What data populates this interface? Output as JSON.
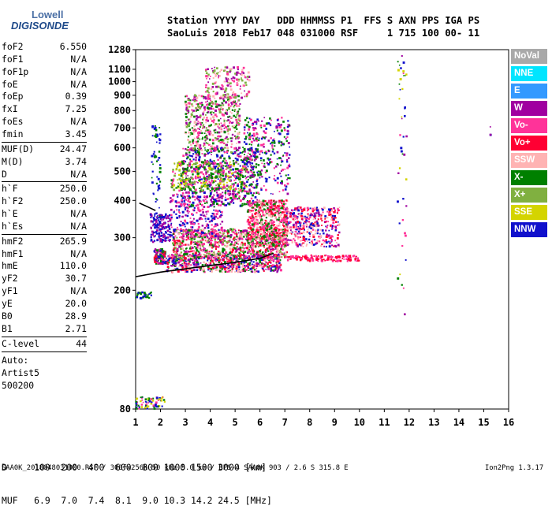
{
  "logo": {
    "top": "Lowell",
    "bottom": "DIGISONDE"
  },
  "header": {
    "row1": "Station YYYY DAY   DDD HHMMSS P1  FFS S AXN PPS IGA PS",
    "row2": "SaoLuis 2018 Feb17 048 031000 RSF     1 715 100 00- 11"
  },
  "params": [
    {
      "name": "foF2",
      "value": "6.550"
    },
    {
      "name": "foF1",
      "value": "N/A"
    },
    {
      "name": "foF1p",
      "value": "N/A"
    },
    {
      "name": "foE",
      "value": "N/A"
    },
    {
      "name": "foEp",
      "value": "0.39"
    },
    {
      "name": "fxI",
      "value": "7.25"
    },
    {
      "name": "foEs",
      "value": "N/A"
    },
    {
      "name": "fmin",
      "value": "3.45"
    },
    {
      "name": "MUF(D)",
      "value": "24.47"
    },
    {
      "name": "M(D)",
      "value": "3.74"
    },
    {
      "name": "D",
      "value": "N/A"
    },
    {
      "name": "h`F",
      "value": "250.0"
    },
    {
      "name": "h`F2",
      "value": "250.0"
    },
    {
      "name": "h`E",
      "value": "N/A"
    },
    {
      "name": "h`Es",
      "value": "N/A"
    },
    {
      "name": "hmF2",
      "value": "265.9"
    },
    {
      "name": "hmF1",
      "value": "N/A"
    },
    {
      "name": "hmE",
      "value": "110.0"
    },
    {
      "name": "yF2",
      "value": "30.7"
    },
    {
      "name": "yF1",
      "value": "N/A"
    },
    {
      "name": "yE",
      "value": "20.0"
    },
    {
      "name": "B0",
      "value": "28.9"
    },
    {
      "name": "B1",
      "value": "2.71"
    },
    {
      "name": "C-level",
      "value": "44"
    }
  ],
  "auto": [
    "Auto:",
    "Artist5",
    "500200"
  ],
  "legend": [
    {
      "label": "NoVal",
      "color": "#a9a9a9"
    },
    {
      "label": "NNE",
      "color": "#00e5ff"
    },
    {
      "label": "E",
      "color": "#3399ff"
    },
    {
      "label": "W",
      "color": "#a000a0"
    },
    {
      "label": "Vo-",
      "color": "#ff3399"
    },
    {
      "label": "Vo+",
      "color": "#ff0033"
    },
    {
      "label": "SSW",
      "color": "#ffb3b3"
    },
    {
      "label": "X-",
      "color": "#008000"
    },
    {
      "label": "X+",
      "color": "#80b040"
    },
    {
      "label": "SSE",
      "color": "#d4d400"
    },
    {
      "label": "NNW",
      "color": "#1010cc"
    }
  ],
  "footer": {
    "row1": "D     100  200  400  600  800 1000 1500 3000 [km]",
    "row2": "MUF   6.9  7.0  7.4  8.1  9.0 10.3 14.2 24.5 [MHz]",
    "file": "SAA0K_2018048031000.RSF / 300fx256h 50 kHz 5.0 km / DPS-4 SAA0K 903 / 2.6 S 315.8 E",
    "version": "Ion2Png 1.3.17"
  },
  "chart_data": {
    "type": "scatter",
    "title": "",
    "xlabel": "",
    "ylabel": "",
    "xlim": [
      1,
      16
    ],
    "ylim": [
      80,
      1280
    ],
    "yscale": "log",
    "x_ticks": [
      1,
      2,
      3,
      4,
      5,
      6,
      7,
      8,
      9,
      10,
      11,
      12,
      13,
      14,
      15,
      16
    ],
    "y_ticks": [
      80,
      200,
      300,
      400,
      500,
      600,
      700,
      800,
      900,
      1000,
      1100,
      1280
    ],
    "grid": false,
    "legend_position": "right",
    "trace": {
      "name": "profile",
      "color": "#000000",
      "points": [
        [
          1.0,
          222
        ],
        [
          2.0,
          230
        ],
        [
          3.0,
          236
        ],
        [
          4.0,
          242
        ],
        [
          5.0,
          248
        ],
        [
          6.0,
          256
        ],
        [
          6.55,
          266
        ]
      ]
    },
    "ox_trace": {
      "color": "#000000",
      "points": [
        [
          1.15,
          392
        ],
        [
          1.5,
          380
        ],
        [
          1.8,
          370
        ]
      ]
    },
    "clusters": [
      {
        "x": [
          1.75,
          2.2
        ],
        "y": [
          245,
          275
        ],
        "n": 140,
        "colors": [
          "#ff3399",
          "#ff0033",
          "#1010cc",
          "#008000",
          "#a000a0"
        ]
      },
      {
        "x": [
          2.2,
          6.9
        ],
        "y": [
          230,
          265
        ],
        "n": 700,
        "colors": [
          "#ff3399",
          "#ff0033",
          "#008000",
          "#a000a0",
          "#ffb3b3",
          "#1010cc"
        ]
      },
      {
        "x": [
          2.5,
          7.1
        ],
        "y": [
          255,
          320
        ],
        "n": 900,
        "colors": [
          "#ff3399",
          "#ff0033",
          "#008000",
          "#ffb3b3",
          "#a000a0",
          "#80b040"
        ]
      },
      {
        "x": [
          5.5,
          7.1
        ],
        "y": [
          280,
          400
        ],
        "n": 600,
        "colors": [
          "#ff3399",
          "#ff0033",
          "#008000",
          "#ffb3b3"
        ]
      },
      {
        "x": [
          7.0,
          9.2
        ],
        "y": [
          280,
          380
        ],
        "n": 420,
        "colors": [
          "#1010cc",
          "#ff3399",
          "#ff0033",
          "#a000a0",
          "#ffb3b3"
        ]
      },
      {
        "x": [
          7.1,
          10.0
        ],
        "y": [
          250,
          262
        ],
        "n": 140,
        "colors": [
          "#ff0033",
          "#ff3399"
        ]
      },
      {
        "x": [
          1.6,
          2.4
        ],
        "y": [
          290,
          360
        ],
        "n": 160,
        "colors": [
          "#1010cc",
          "#a000a0"
        ]
      },
      {
        "x": [
          2.4,
          4.5
        ],
        "y": [
          300,
          420
        ],
        "n": 260,
        "colors": [
          "#1010cc",
          "#a000a0",
          "#ff3399"
        ]
      },
      {
        "x": [
          2.8,
          5.9
        ],
        "y": [
          380,
          600
        ],
        "n": 650,
        "colors": [
          "#1010cc",
          "#a000a0",
          "#ff3399",
          "#008000"
        ]
      },
      {
        "x": [
          2.4,
          5.5
        ],
        "y": [
          430,
          540
        ],
        "n": 320,
        "colors": [
          "#008000",
          "#80b040",
          "#d4d400",
          "#ff3399"
        ]
      },
      {
        "x": [
          3.0,
          5.2
        ],
        "y": [
          580,
          900
        ],
        "n": 520,
        "colors": [
          "#80b040",
          "#ff3399",
          "#008000",
          "#ffb3b3",
          "#a000a0"
        ]
      },
      {
        "x": [
          3.8,
          5.6
        ],
        "y": [
          880,
          1120
        ],
        "n": 170,
        "colors": [
          "#ff3399",
          "#ffb3b3",
          "#a000a0",
          "#80b040"
        ]
      },
      {
        "x": [
          5.3,
          7.2
        ],
        "y": [
          420,
          760
        ],
        "n": 300,
        "colors": [
          "#008000",
          "#1010cc",
          "#ff3399",
          "#a000a0"
        ]
      },
      {
        "x": [
          1.65,
          2.0
        ],
        "y": [
          350,
          720
        ],
        "n": 60,
        "colors": [
          "#1010cc",
          "#008000"
        ]
      },
      {
        "x": [
          11.5,
          11.9
        ],
        "y": [
          150,
          1280
        ],
        "n": 45,
        "colors": [
          "#a000a0",
          "#1010cc",
          "#d4d400",
          "#ff3399",
          "#008000"
        ]
      },
      {
        "x": [
          1.0,
          2.2
        ],
        "y": [
          80,
          88
        ],
        "n": 70,
        "colors": [
          "#d4d400",
          "#1010cc",
          "#ff3399",
          "#008000"
        ]
      },
      {
        "x": [
          1.0,
          1.7
        ],
        "y": [
          188,
          198
        ],
        "n": 30,
        "colors": [
          "#008000",
          "#1010cc"
        ]
      },
      {
        "x": [
          15.2,
          15.3
        ],
        "y": [
          660,
          710
        ],
        "n": 3,
        "colors": [
          "#1010cc",
          "#a000a0"
        ]
      }
    ]
  }
}
